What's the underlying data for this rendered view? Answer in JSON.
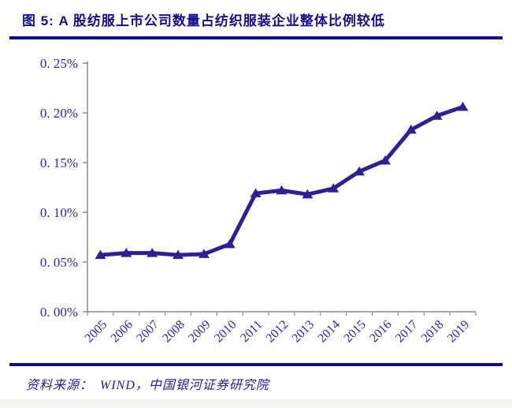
{
  "header": {
    "title": "图 5: A 股纺服上市公司数量占纺织服装企业整体比例较低"
  },
  "footer": {
    "source": "资料来源：　WIND，中国银河证券研究院"
  },
  "colors": {
    "title_text": "#150b8b",
    "rule": "#150b8b",
    "axis_text": "#2a28a2",
    "series_line": "#2e1f93",
    "axis_line": "#8c8c8c",
    "background": "#ffffff"
  },
  "chart_data": {
    "type": "line",
    "title": "图 5: A 股纺服上市公司数量占纺织服装企业整体比例较低",
    "categories": [
      "2005",
      "2006",
      "2007",
      "2008",
      "2009",
      "2010",
      "2011",
      "2012",
      "2013",
      "2014",
      "2015",
      "2016",
      "2017",
      "2018",
      "2019"
    ],
    "series": [
      {
        "name": "A股纺服上市公司数量占纺织服装企业整体比例",
        "unit": "%",
        "marker": "triangle",
        "values": [
          0.057,
          0.059,
          0.059,
          0.057,
          0.058,
          0.068,
          0.119,
          0.122,
          0.118,
          0.124,
          0.141,
          0.152,
          0.183,
          0.197,
          0.206
        ]
      }
    ],
    "xlabel": "",
    "ylabel": "",
    "ylim": [
      0,
      0.25
    ],
    "ytick_step": 0.05,
    "ytick_labels": [
      "0. 00%",
      "0. 05%",
      "0. 10%",
      "0. 15%",
      "0. 20%",
      "0. 25%"
    ],
    "x_tick_label_rotation": -45,
    "grid": false,
    "legend_position": "none"
  }
}
